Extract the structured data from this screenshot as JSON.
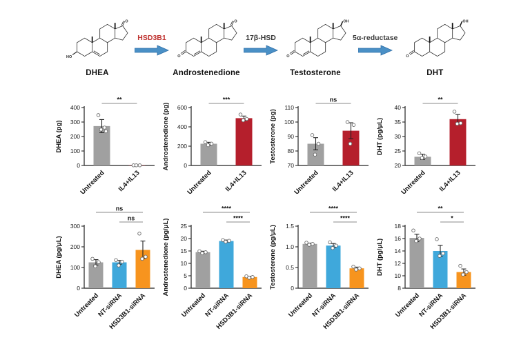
{
  "figure": {
    "pathway": {
      "arrow_color": "#4a90c6",
      "arrow_stroke": "#2f6fa8",
      "compounds": [
        {
          "name": "DHEA",
          "bottom_group": "HO",
          "top_group": "O",
          "ring_double_bond": "delta5"
        },
        {
          "name": "Androstenedione",
          "bottom_group": "O",
          "top_group": "O",
          "ring_double_bond": "delta4"
        },
        {
          "name": "Testosterone",
          "bottom_group": "O",
          "top_group": "OH",
          "ring_double_bond": "delta4"
        },
        {
          "name": "DHT",
          "bottom_group": "O",
          "top_group": "OH",
          "ring_double_bond": "none"
        }
      ],
      "enzymes": [
        {
          "label": "HSD3B1",
          "color": "#bf3330"
        },
        {
          "label": "17β-HSD",
          "color": "#3a3a3a"
        },
        {
          "label": "5α-reductase",
          "color": "#3a3a3a"
        }
      ]
    }
  },
  "chart_data": [
    {
      "type": "bar",
      "ylabel": "DHEA (pg)",
      "ylim": [
        0,
        400
      ],
      "ytick_vals": [
        0,
        100,
        200,
        300,
        400
      ],
      "ytick_labels": [
        "0",
        "100",
        "200",
        "300",
        "400"
      ],
      "categories": [
        "Untreated",
        "IL4+IL13"
      ],
      "values": [
        272,
        2
      ],
      "sem": [
        45,
        1
      ],
      "colors": [
        "#a0a0a0",
        "#b51f2c"
      ],
      "points": [
        [
          348,
          262,
          248,
          236
        ],
        [
          1,
          1,
          1
        ]
      ],
      "comparisons": [
        {
          "a": 0,
          "b": 1,
          "label": "**"
        }
      ]
    },
    {
      "type": "bar",
      "ylabel": "Androstenedione (pg)",
      "ylim": [
        0,
        600
      ],
      "ytick_vals": [
        0,
        200,
        400,
        600
      ],
      "ytick_labels": [
        "0",
        "200",
        "400",
        "600"
      ],
      "categories": [
        "Untreated",
        "IL4+IL13"
      ],
      "values": [
        225,
        490
      ],
      "sem": [
        15,
        22
      ],
      "colors": [
        "#a0a0a0",
        "#b51f2c"
      ],
      "points": [
        [
          242,
          226,
          210
        ],
        [
          528,
          482,
          468
        ]
      ],
      "comparisons": [
        {
          "a": 0,
          "b": 1,
          "label": "***"
        }
      ]
    },
    {
      "type": "bar",
      "ylabel": "Testosterone (pg)",
      "ylim": [
        70,
        110
      ],
      "ytick_vals": [
        70,
        80,
        90,
        100,
        110
      ],
      "ytick_labels": [
        "70",
        "80",
        "90",
        "100",
        "110"
      ],
      "categories": [
        "Untreated",
        "IL4+IL13"
      ],
      "values": [
        85,
        94
      ],
      "sem": [
        4.2,
        5.5
      ],
      "colors": [
        "#a0a0a0",
        "#b51f2c"
      ],
      "points": [
        [
          91,
          85,
          77.5
        ],
        [
          100,
          98,
          85
        ]
      ],
      "comparisons": [
        {
          "a": 0,
          "b": 1,
          "label": "ns"
        }
      ]
    },
    {
      "type": "bar",
      "ylabel": "DHT (pg/μL)",
      "ylim": [
        20,
        40
      ],
      "ytick_vals": [
        20,
        25,
        30,
        35,
        40
      ],
      "ytick_labels": [
        "20",
        "25",
        "30",
        "35",
        "40"
      ],
      "categories": [
        "Untreated",
        "IL4+IL13"
      ],
      "values": [
        23,
        36
      ],
      "sem": [
        0.9,
        1.6
      ],
      "colors": [
        "#a0a0a0",
        "#b51f2c"
      ],
      "points": [
        [
          24.2,
          23.1,
          22.6
        ],
        [
          38.6,
          34.6,
          34.4
        ]
      ],
      "comparisons": [
        {
          "a": 0,
          "b": 1,
          "label": "**"
        }
      ]
    },
    {
      "type": "bar",
      "ylabel": "DHEA (pg/μL)",
      "ylim": [
        0,
        300
      ],
      "ytick_vals": [
        0,
        100,
        200,
        300
      ],
      "ytick_labels": [
        "0",
        "100",
        "200",
        "300"
      ],
      "categories": [
        "Untreated",
        "NT-siRNA",
        "HSD3B1-siRNA"
      ],
      "values": [
        125,
        125,
        185
      ],
      "sem": [
        13,
        9,
        43
      ],
      "colors": [
        "#a0a0a0",
        "#3fa8db",
        "#f7941e"
      ],
      "points": [
        [
          142,
          126,
          106
        ],
        [
          136,
          128,
          110
        ],
        [
          264,
          152,
          142
        ]
      ],
      "comparisons": [
        {
          "a": 0,
          "b": 2,
          "label": "ns"
        },
        {
          "a": 1,
          "b": 2,
          "label": "ns"
        }
      ]
    },
    {
      "type": "bar",
      "ylabel": "Androstenedione (pg/μL)",
      "ylim": [
        0,
        25
      ],
      "ytick_vals": [
        0,
        5,
        10,
        15,
        20,
        25
      ],
      "ytick_labels": [
        "0",
        "5",
        "10",
        "15",
        "20",
        "25"
      ],
      "categories": [
        "Untreated",
        "NT-siRNA",
        "HSD3B1-siRNA"
      ],
      "values": [
        14.5,
        19,
        4.5
      ],
      "sem": [
        0.4,
        0.4,
        0.3
      ],
      "colors": [
        "#a0a0a0",
        "#3fa8db",
        "#f7941e"
      ],
      "points": [
        [
          14.9,
          14.5,
          14.1
        ],
        [
          19.4,
          19.1,
          18.7
        ],
        [
          4.8,
          4.5,
          4.2
        ]
      ],
      "comparisons": [
        {
          "a": 0,
          "b": 2,
          "label": "****"
        },
        {
          "a": 1,
          "b": 2,
          "label": "****"
        }
      ]
    },
    {
      "type": "bar",
      "ylabel": "Testosterone (pg/μL)",
      "ylim": [
        0,
        1.5
      ],
      "ytick_vals": [
        0,
        0.5,
        1.0,
        1.5
      ],
      "ytick_labels": [
        "0",
        "0.5",
        "1.0",
        "1.5"
      ],
      "categories": [
        "Untreated",
        "NT-siRNA",
        "HSD3B1-siRNA"
      ],
      "values": [
        1.07,
        1.03,
        0.48
      ],
      "sem": [
        0.02,
        0.05,
        0.03
      ],
      "colors": [
        "#a0a0a0",
        "#3fa8db",
        "#f7941e"
      ],
      "points": [
        [
          1.1,
          1.07,
          1.05
        ],
        [
          1.11,
          1.03,
          0.97
        ],
        [
          0.52,
          0.48,
          0.45
        ]
      ],
      "comparisons": [
        {
          "a": 0,
          "b": 2,
          "label": "****"
        },
        {
          "a": 1,
          "b": 2,
          "label": "****"
        }
      ]
    },
    {
      "type": "bar",
      "ylabel": "DHT (pg/μL)",
      "ylim": [
        8,
        18
      ],
      "ytick_vals": [
        8,
        10,
        12,
        14,
        16,
        18
      ],
      "ytick_labels": [
        "8",
        "10",
        "12",
        "14",
        "16",
        "18"
      ],
      "categories": [
        "Untreated",
        "NT-siRNA",
        "HSD3B1-siRNA"
      ],
      "values": [
        16.1,
        14,
        10.6
      ],
      "sem": [
        0.6,
        0.9,
        0.5
      ],
      "colors": [
        "#a0a0a0",
        "#3fa8db",
        "#f7941e"
      ],
      "points": [
        [
          17.3,
          16,
          15.6
        ],
        [
          15.9,
          13.6,
          13.2
        ],
        [
          11.6,
          10.6,
          10.2
        ]
      ],
      "comparisons": [
        {
          "a": 0,
          "b": 2,
          "label": "**"
        },
        {
          "a": 1,
          "b": 2,
          "label": "*"
        }
      ]
    }
  ]
}
